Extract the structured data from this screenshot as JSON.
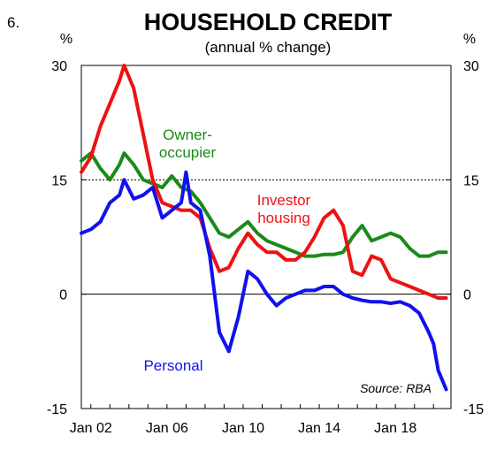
{
  "figure_number": "6.",
  "source": "Source: RBA",
  "chart_data": {
    "type": "line",
    "title": "HOUSEHOLD CREDIT",
    "subtitle": "(annual % change)",
    "ylabel_left": "%",
    "ylabel_right": "%",
    "ylim": [
      -15,
      30
    ],
    "yticks": [
      -15,
      0,
      15,
      30
    ],
    "xlim": [
      "2001-07",
      "2020-12"
    ],
    "xticks": [
      "Jan 02",
      "Jan 06",
      "Jan 10",
      "Jan 14",
      "Jan 18"
    ],
    "grid": false,
    "legend": "inline labels",
    "series": [
      {
        "name": "Owner-\noccupier",
        "color": "#1a8a1a",
        "points": [
          [
            "2001-07",
            17.5
          ],
          [
            "2002-01",
            18.5
          ],
          [
            "2002-07",
            16.5
          ],
          [
            "2003-01",
            15.0
          ],
          [
            "2003-07",
            17.0
          ],
          [
            "2003-10",
            18.5
          ],
          [
            "2004-04",
            17.0
          ],
          [
            "2004-10",
            15.0
          ],
          [
            "2005-04",
            14.5
          ],
          [
            "2005-10",
            14.0
          ],
          [
            "2006-04",
            15.5
          ],
          [
            "2006-10",
            14.0
          ],
          [
            "2007-04",
            13.5
          ],
          [
            "2007-10",
            12.0
          ],
          [
            "2008-04",
            10.0
          ],
          [
            "2008-10",
            8.0
          ],
          [
            "2009-04",
            7.5
          ],
          [
            "2009-10",
            8.5
          ],
          [
            "2010-04",
            9.5
          ],
          [
            "2010-10",
            8.0
          ],
          [
            "2011-04",
            7.0
          ],
          [
            "2011-10",
            6.5
          ],
          [
            "2012-04",
            6.0
          ],
          [
            "2012-10",
            5.5
          ],
          [
            "2013-04",
            5.0
          ],
          [
            "2013-10",
            5.0
          ],
          [
            "2014-04",
            5.2
          ],
          [
            "2014-10",
            5.2
          ],
          [
            "2015-04",
            5.5
          ],
          [
            "2015-10",
            7.5
          ],
          [
            "2016-04",
            9.0
          ],
          [
            "2016-10",
            7.0
          ],
          [
            "2017-04",
            7.5
          ],
          [
            "2017-10",
            8.0
          ],
          [
            "2018-04",
            7.5
          ],
          [
            "2018-10",
            6.0
          ],
          [
            "2019-04",
            5.0
          ],
          [
            "2019-10",
            5.0
          ],
          [
            "2020-04",
            5.5
          ],
          [
            "2020-09",
            5.5
          ]
        ]
      },
      {
        "name": "Investor\nhousing",
        "color": "#ee1111",
        "points": [
          [
            "2001-07",
            16.0
          ],
          [
            "2002-01",
            18.0
          ],
          [
            "2002-07",
            22.0
          ],
          [
            "2003-01",
            25.0
          ],
          [
            "2003-07",
            28.0
          ],
          [
            "2003-10",
            30.0
          ],
          [
            "2004-04",
            27.0
          ],
          [
            "2004-10",
            21.0
          ],
          [
            "2005-04",
            15.0
          ],
          [
            "2005-10",
            12.0
          ],
          [
            "2006-04",
            11.5
          ],
          [
            "2006-10",
            11.0
          ],
          [
            "2007-04",
            11.0
          ],
          [
            "2007-10",
            10.0
          ],
          [
            "2008-04",
            6.0
          ],
          [
            "2008-10",
            3.0
          ],
          [
            "2009-04",
            3.5
          ],
          [
            "2009-10",
            6.0
          ],
          [
            "2010-04",
            8.0
          ],
          [
            "2010-10",
            6.5
          ],
          [
            "2011-04",
            5.5
          ],
          [
            "2011-10",
            5.5
          ],
          [
            "2012-04",
            4.5
          ],
          [
            "2012-10",
            4.5
          ],
          [
            "2013-04",
            5.5
          ],
          [
            "2013-10",
            7.5
          ],
          [
            "2014-04",
            10.0
          ],
          [
            "2014-10",
            11.0
          ],
          [
            "2015-04",
            9.0
          ],
          [
            "2015-10",
            3.0
          ],
          [
            "2016-04",
            2.5
          ],
          [
            "2016-10",
            5.0
          ],
          [
            "2017-04",
            4.5
          ],
          [
            "2017-10",
            2.0
          ],
          [
            "2018-04",
            1.5
          ],
          [
            "2018-10",
            1.0
          ],
          [
            "2019-04",
            0.5
          ],
          [
            "2019-10",
            0.0
          ],
          [
            "2020-04",
            -0.5
          ],
          [
            "2020-09",
            -0.5
          ]
        ]
      },
      {
        "name": "Personal",
        "color": "#1111ee",
        "points": [
          [
            "2001-07",
            8.0
          ],
          [
            "2002-01",
            8.5
          ],
          [
            "2002-07",
            9.5
          ],
          [
            "2003-01",
            12.0
          ],
          [
            "2003-07",
            13.0
          ],
          [
            "2003-10",
            15.0
          ],
          [
            "2004-04",
            12.5
          ],
          [
            "2004-10",
            13.0
          ],
          [
            "2005-04",
            14.0
          ],
          [
            "2005-10",
            10.0
          ],
          [
            "2006-04",
            11.0
          ],
          [
            "2006-10",
            12.0
          ],
          [
            "2007-01",
            16.0
          ],
          [
            "2007-04",
            12.0
          ],
          [
            "2007-10",
            11.0
          ],
          [
            "2008-04",
            5.0
          ],
          [
            "2008-10",
            -5.0
          ],
          [
            "2009-04",
            -7.5
          ],
          [
            "2009-10",
            -3.0
          ],
          [
            "2010-04",
            3.0
          ],
          [
            "2010-10",
            2.0
          ],
          [
            "2011-04",
            0.0
          ],
          [
            "2011-10",
            -1.5
          ],
          [
            "2012-04",
            -0.5
          ],
          [
            "2012-10",
            0.0
          ],
          [
            "2013-04",
            0.5
          ],
          [
            "2013-10",
            0.5
          ],
          [
            "2014-04",
            1.0
          ],
          [
            "2014-10",
            1.0
          ],
          [
            "2015-04",
            0.0
          ],
          [
            "2015-10",
            -0.5
          ],
          [
            "2016-04",
            -0.8
          ],
          [
            "2016-10",
            -1.0
          ],
          [
            "2017-04",
            -1.0
          ],
          [
            "2017-10",
            -1.2
          ],
          [
            "2018-04",
            -1.0
          ],
          [
            "2018-10",
            -1.5
          ],
          [
            "2019-04",
            -2.5
          ],
          [
            "2019-10",
            -5.0
          ],
          [
            "2020-01",
            -6.5
          ],
          [
            "2020-04",
            -10.0
          ],
          [
            "2020-09",
            -12.5
          ]
        ]
      }
    ]
  }
}
